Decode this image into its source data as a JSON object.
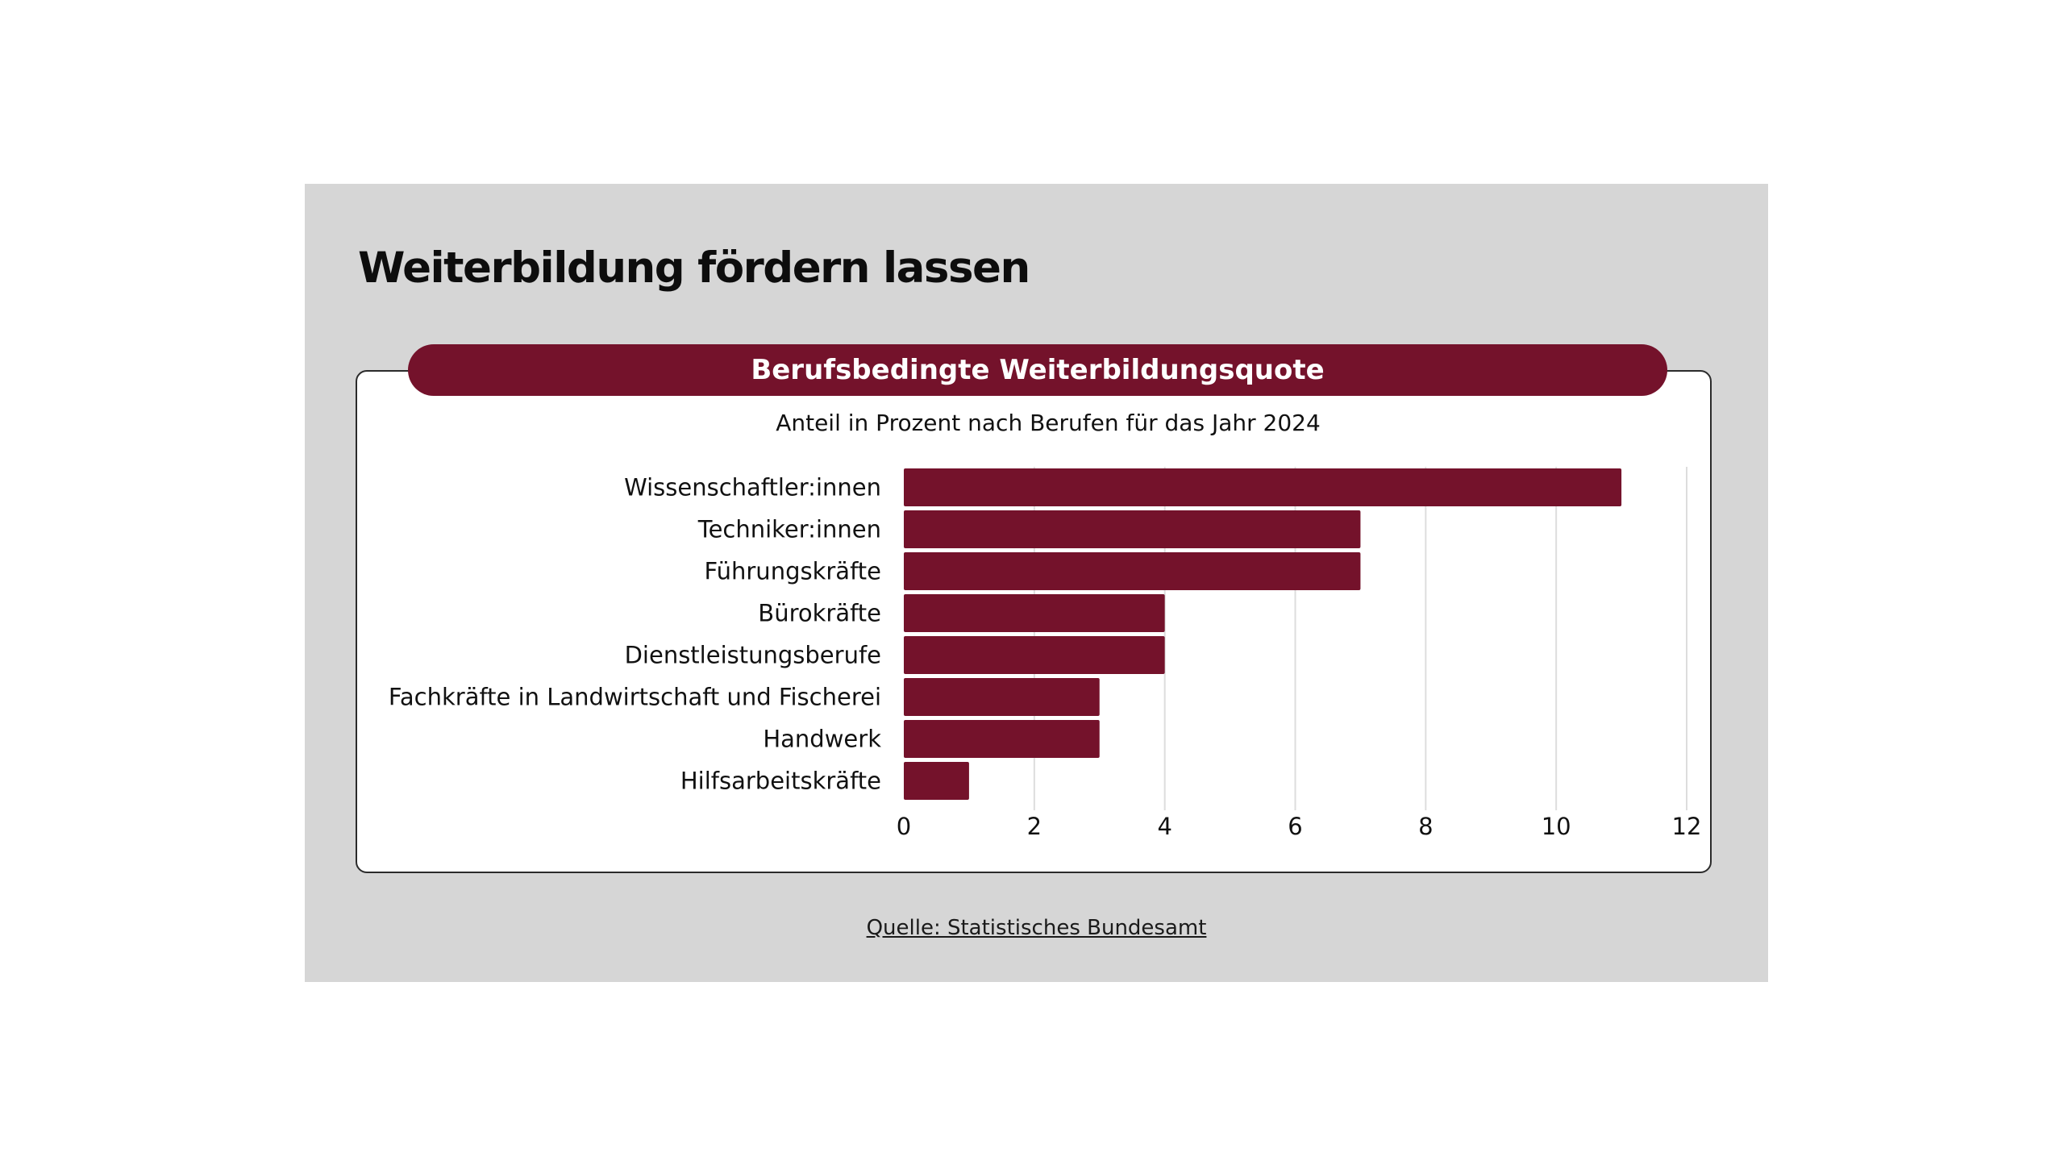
{
  "page": {
    "title": "Weiterbildung fördern lassen",
    "source": "Quelle: Statistisches Bundesamt"
  },
  "colors": {
    "panel_background": "#d6d6d6",
    "bar": "#74122b",
    "banner": "#74122b",
    "grid": "#dddddd"
  },
  "chart_data": {
    "type": "bar",
    "orientation": "horizontal",
    "title": "Berufsbedingte Weiterbildungsquote",
    "subtitle": "Anteil in Prozent nach Berufen für das Jahr 2024",
    "categories": [
      "Wissenschaftler:innen",
      "Techniker:innen",
      "Führungskräfte",
      "Bürokräfte",
      "Dienstleistungsberufe",
      "Fachkräfte in Landwirtschaft und Fischerei",
      "Handwerk",
      "Hilfsarbeitskräfte"
    ],
    "values": [
      11,
      7,
      7,
      4,
      4,
      3,
      3,
      1
    ],
    "xlim": [
      0,
      12
    ],
    "xticks": [
      "0",
      "2",
      "4",
      "6",
      "8",
      "10",
      "12"
    ],
    "xlabel": "",
    "ylabel": "",
    "grid": "vertical",
    "legend": "none"
  }
}
